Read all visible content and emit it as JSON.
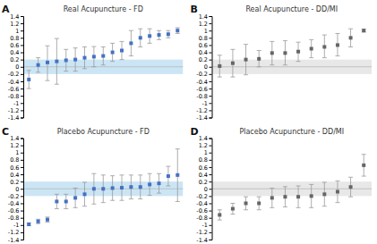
{
  "chart_data": [
    {
      "type": "errorbar",
      "label": "A",
      "title": "Real Acupuncture - FD",
      "color": "#4472c4",
      "marker": "square",
      "categories": [
        null,
        null,
        null,
        null,
        null,
        null,
        null,
        null,
        null,
        null,
        null,
        null,
        null,
        null,
        null,
        null,
        null
      ],
      "values": [
        -0.35,
        0.05,
        0.12,
        0.15,
        0.18,
        0.2,
        0.25,
        0.28,
        0.3,
        0.4,
        0.45,
        0.65,
        0.8,
        0.85,
        0.88,
        0.9,
        1.0
      ],
      "lows": [
        -0.6,
        -0.15,
        -0.38,
        -0.48,
        -0.12,
        -0.12,
        -0.05,
        0.0,
        0.05,
        0.15,
        0.2,
        0.3,
        0.55,
        0.65,
        0.75,
        0.8,
        0.92
      ],
      "highs": [
        -0.1,
        0.25,
        0.58,
        0.78,
        0.48,
        0.52,
        0.55,
        0.56,
        0.55,
        0.65,
        0.7,
        1.0,
        1.05,
        1.05,
        1.0,
        1.0,
        1.08
      ],
      "band": {
        "lo": -0.2,
        "hi": 0.2,
        "color": "#cce5f5"
      },
      "hline": 0,
      "ylim": [
        -1.4,
        1.4
      ],
      "yticks": [
        -1.4,
        -1.2,
        -1,
        -0.8,
        -0.6,
        -0.4,
        -0.2,
        0,
        0.2,
        0.4,
        0.6,
        0.8,
        1,
        1.2,
        1.4
      ],
      "grid": false,
      "tick_labels": "y"
    },
    {
      "type": "errorbar",
      "label": "B",
      "title": "Real Acupuncture - DD/MI",
      "color": "#666666",
      "marker": "square",
      "categories": [
        null,
        null,
        null,
        null,
        null,
        null,
        null,
        null,
        null,
        null,
        null,
        null
      ],
      "values": [
        0.02,
        0.1,
        0.2,
        0.22,
        0.38,
        0.38,
        0.42,
        0.5,
        0.55,
        0.6,
        0.8,
        1.0
      ],
      "lows": [
        -0.28,
        -0.28,
        -0.22,
        0.0,
        0.05,
        0.05,
        0.15,
        0.25,
        0.25,
        0.3,
        0.55,
        0.96
      ],
      "highs": [
        0.32,
        0.48,
        0.62,
        0.45,
        0.7,
        0.72,
        0.68,
        0.75,
        0.88,
        0.92,
        1.05,
        1.04
      ],
      "band": {
        "lo": -0.2,
        "hi": 0.2,
        "color": "#e8e8e8"
      },
      "hline": 0,
      "ylim": [
        -1.4,
        1.4
      ],
      "yticks": [
        -1.4,
        -1.2,
        -1,
        -0.8,
        -0.6,
        -0.4,
        -0.2,
        0,
        0.2,
        0.4,
        0.6,
        0.8,
        1,
        1.2,
        1.4
      ],
      "grid": false,
      "tick_labels": "y"
    },
    {
      "type": "errorbar",
      "label": "C",
      "title": "Placebo Acupuncture - FD",
      "color": "#4472c4",
      "marker": "square",
      "categories": [
        null,
        null,
        null,
        null,
        null,
        null,
        null,
        null,
        null,
        null,
        null,
        null,
        null,
        null,
        null,
        null,
        null
      ],
      "values": [
        -0.98,
        -0.9,
        -0.85,
        -0.35,
        -0.35,
        -0.25,
        -0.15,
        0.0,
        0.0,
        0.02,
        0.03,
        0.05,
        0.05,
        0.12,
        0.15,
        0.35,
        0.38
      ],
      "lows": [
        -1.02,
        -0.96,
        -0.92,
        -0.55,
        -0.55,
        -0.52,
        -0.48,
        -0.42,
        -0.38,
        -0.32,
        -0.32,
        -0.28,
        -0.28,
        -0.18,
        -0.12,
        0.08,
        -0.35
      ],
      "highs": [
        -0.94,
        -0.84,
        -0.78,
        -0.15,
        -0.15,
        0.02,
        0.18,
        0.42,
        0.38,
        0.36,
        0.38,
        0.38,
        0.38,
        0.42,
        0.42,
        0.62,
        1.1
      ],
      "band": {
        "lo": -0.2,
        "hi": 0.2,
        "color": "#cce5f5"
      },
      "hline": 0,
      "ylim": [
        -1.4,
        1.4
      ],
      "yticks": [
        -1.4,
        -1.2,
        -1,
        -0.8,
        -0.6,
        -0.4,
        -0.2,
        0,
        0.2,
        0.4,
        0.6,
        0.8,
        1,
        1.2,
        1.4
      ],
      "grid": false,
      "tick_labels": "y"
    },
    {
      "type": "errorbar",
      "label": "D",
      "title": "Placebo Acupuncture - DD/MI",
      "color": "#666666",
      "marker": "square",
      "categories": [
        null,
        null,
        null,
        null,
        null,
        null,
        null,
        null,
        null,
        null,
        null,
        null
      ],
      "values": [
        -0.72,
        -0.55,
        -0.4,
        -0.4,
        -0.25,
        -0.22,
        -0.22,
        -0.2,
        -0.15,
        -0.08,
        0.05,
        0.65
      ],
      "lows": [
        -0.86,
        -0.7,
        -0.58,
        -0.58,
        -0.52,
        -0.5,
        -0.52,
        -0.52,
        -0.48,
        -0.38,
        -0.22,
        0.35
      ],
      "highs": [
        -0.58,
        -0.4,
        -0.22,
        -0.22,
        0.02,
        0.06,
        0.08,
        0.12,
        0.18,
        0.22,
        0.32,
        0.95
      ],
      "band": {
        "lo": -0.2,
        "hi": 0.2,
        "color": "#e8e8e8"
      },
      "hline": 0,
      "ylim": [
        -1.4,
        1.4
      ],
      "yticks": [
        -1.4,
        -1.2,
        -1,
        -0.8,
        -0.6,
        -0.4,
        -0.2,
        0,
        0.2,
        0.4,
        0.6,
        0.8,
        1,
        1.2,
        1.4
      ],
      "grid": false,
      "tick_labels": "y"
    }
  ]
}
